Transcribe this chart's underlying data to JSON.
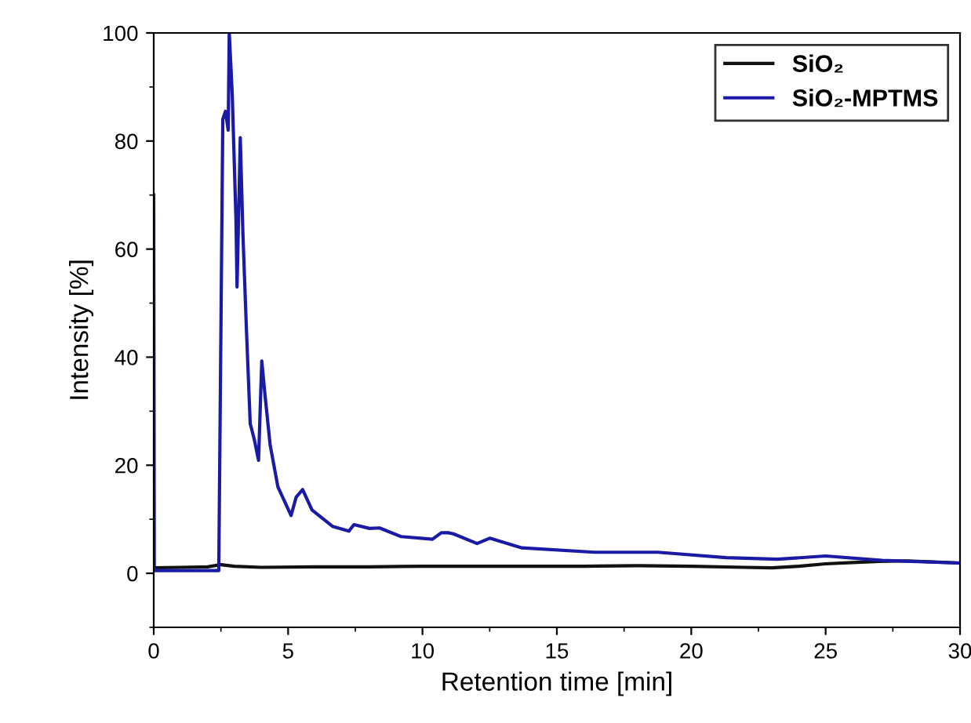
{
  "chart_data": {
    "type": "line",
    "xlabel": "Retention time [min]",
    "ylabel": "Intensity [%]",
    "xlim": [
      0,
      30
    ],
    "ylim": [
      -10,
      100
    ],
    "xticks": [
      0,
      5,
      10,
      15,
      20,
      25,
      30
    ],
    "yticks": [
      0,
      20,
      40,
      60,
      80,
      100
    ],
    "grid": false,
    "legend": "top right",
    "line_style": "solid",
    "marker": "none",
    "series": [
      {
        "name": "SiO₂",
        "color": "#111111",
        "x": [
          0,
          1,
          2,
          2.5,
          3,
          4,
          6,
          8,
          10,
          12,
          14,
          16,
          18,
          20,
          22,
          23,
          24,
          25,
          26,
          27,
          28,
          29,
          30
        ],
        "values": [
          1.0,
          1.1,
          1.2,
          1.6,
          1.3,
          1.1,
          1.2,
          1.2,
          1.3,
          1.3,
          1.3,
          1.3,
          1.4,
          1.3,
          1.1,
          1.0,
          1.3,
          1.75,
          2.0,
          2.2,
          2.3,
          2.1,
          1.9
        ]
      },
      {
        "name": "SiO₂-MPTMS",
        "color": "#1a1aa6",
        "x": [
          0,
          0.02,
          1,
          2.42,
          2.57,
          2.67,
          2.77,
          2.81,
          2.92,
          3.06,
          3.1,
          3.16,
          3.22,
          3.32,
          3.45,
          3.59,
          3.74,
          3.9,
          4.02,
          4.13,
          4.33,
          4.62,
          5.11,
          5.3,
          5.54,
          5.89,
          6.65,
          7.26,
          7.45,
          8.03,
          8.4,
          9.2,
          10.37,
          10.7,
          10.96,
          11.15,
          12.03,
          12.5,
          13.7,
          16.4,
          18.75,
          21.3,
          23.2,
          25,
          27.1,
          30
        ],
        "values": [
          70,
          0.5,
          0.5,
          0.5,
          84,
          85.5,
          82,
          100,
          88.8,
          65.5,
          53,
          66.5,
          80.6,
          62.6,
          45,
          27.7,
          24.8,
          20.9,
          39.3,
          33.5,
          23.8,
          16,
          10.7,
          14.1,
          15.5,
          11.7,
          8.7,
          7.8,
          9,
          8.3,
          8.4,
          6.8,
          6.3,
          7.5,
          7.5,
          7.3,
          5.5,
          6.5,
          4.7,
          3.9,
          3.9,
          2.9,
          2.6,
          3.2,
          2.4,
          1.9
        ]
      }
    ]
  }
}
